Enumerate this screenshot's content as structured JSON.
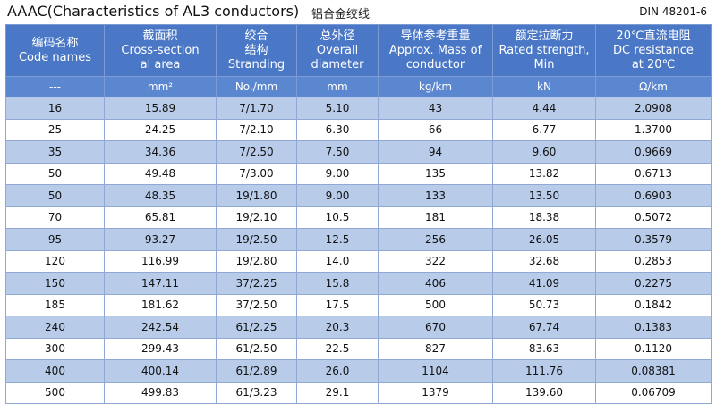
{
  "header": {
    "title": "AAAC(Characteristics of AL3 conductors)",
    "subtitle": "铝合金绞线",
    "standard": "DIN 48201-6"
  },
  "table": {
    "columns": [
      [
        "编码名称",
        "Code names"
      ],
      [
        "截面积",
        "Cross-section",
        "al area"
      ],
      [
        "绞合",
        "结构",
        "Stranding"
      ],
      [
        "总外径",
        "Overall",
        "diameter"
      ],
      [
        "导体参考重量",
        "Approx. Mass of",
        "conductor"
      ],
      [
        "额定拉断力",
        "Rated strength,",
        "Min"
      ],
      [
        "20℃直流电阻",
        "DC resistance",
        "at 20℃"
      ]
    ],
    "units": [
      "---",
      "mm²",
      "No./mm",
      "mm",
      "kg/km",
      "kN",
      "Ω/km"
    ],
    "rows": [
      [
        "16",
        "15.89",
        "7/1.70",
        "5.10",
        "43",
        "4.44",
        "2.0908"
      ],
      [
        "25",
        "24.25",
        "7/2.10",
        "6.30",
        "66",
        "6.77",
        "1.3700"
      ],
      [
        "35",
        "34.36",
        "7/2.50",
        "7.50",
        "94",
        "9.60",
        "0.9669"
      ],
      [
        "50",
        "49.48",
        "7/3.00",
        "9.00",
        "135",
        "13.82",
        "0.6713"
      ],
      [
        "50",
        "48.35",
        "19/1.80",
        "9.00",
        "133",
        "13.50",
        "0.6903"
      ],
      [
        "70",
        "65.81",
        "19/2.10",
        "10.5",
        "181",
        "18.38",
        "0.5072"
      ],
      [
        "95",
        "93.27",
        "19/2.50",
        "12.5",
        "256",
        "26.05",
        "0.3579"
      ],
      [
        "120",
        "116.99",
        "19/2.80",
        "14.0",
        "322",
        "32.68",
        "0.2853"
      ],
      [
        "150",
        "147.11",
        "37/2.25",
        "15.8",
        "406",
        "41.09",
        "0.2275"
      ],
      [
        "185",
        "181.62",
        "37/2.50",
        "17.5",
        "500",
        "50.73",
        "0.1842"
      ],
      [
        "240",
        "242.54",
        "61/2.25",
        "20.3",
        "670",
        "67.74",
        "0.1383"
      ],
      [
        "300",
        "299.43",
        "61/2.50",
        "22.5",
        "827",
        "83.63",
        "0.1120"
      ],
      [
        "400",
        "400.14",
        "61/2.89",
        "26.0",
        "1104",
        "111.76",
        "0.08381"
      ],
      [
        "500",
        "499.83",
        "61/3.23",
        "29.1",
        "1379",
        "139.60",
        "0.06709"
      ]
    ]
  }
}
